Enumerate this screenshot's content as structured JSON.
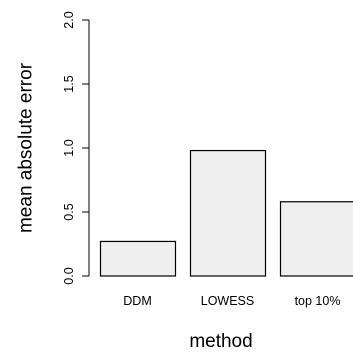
{
  "chart_data": {
    "type": "bar",
    "categories": [
      "DDM",
      "LOWESS",
      "top 10%"
    ],
    "values": [
      0.27,
      0.98,
      0.58
    ],
    "xlabel": "method",
    "ylabel": "mean absolute error",
    "ylim": [
      0,
      2
    ],
    "yticks": [
      "0.0",
      "0.5",
      "1.0",
      "1.5",
      "2.0"
    ],
    "grid": false,
    "legend": "none",
    "colors": {
      "bar_fill": "#efefef",
      "bar_stroke": "#000000",
      "axis": "#000000"
    }
  }
}
